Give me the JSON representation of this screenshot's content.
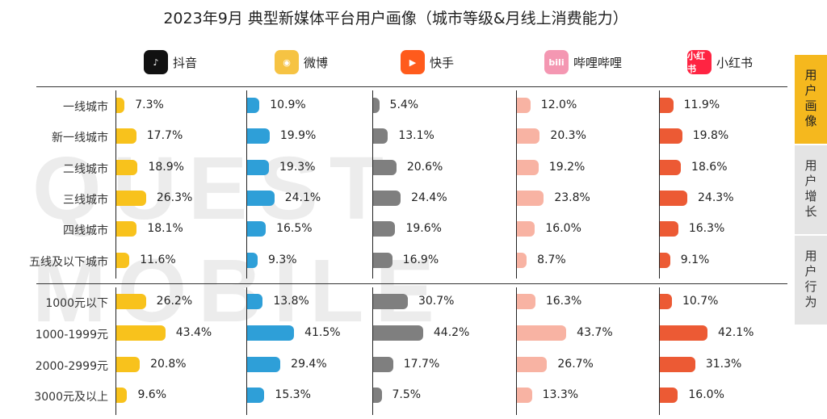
{
  "title": "2023年9月 典型新媒体平台用户画像（城市等级&月线上消费能力）",
  "watermark": "QUEST MOBILE",
  "side_tabs": [
    "用户画像",
    "用户增长",
    "用户行为"
  ],
  "platforms": [
    {
      "name": "抖音",
      "logo_text": "♪",
      "logo_icon": "douyin-icon",
      "logo_bg": "#111111",
      "color": "#f8c21c"
    },
    {
      "name": "微博",
      "logo_text": "◉",
      "logo_icon": "weibo-icon",
      "logo_bg": "#f6c343",
      "color": "#2e9fd8"
    },
    {
      "name": "快手",
      "logo_text": "▶",
      "logo_icon": "kuaishou-icon",
      "logo_bg": "#ff5b1c",
      "color": "#7f7f7f"
    },
    {
      "name": "哔哩哔哩",
      "logo_text": "bili",
      "logo_icon": "bilibili-icon",
      "logo_bg": "#f497b2",
      "color": "#f8b3a3"
    },
    {
      "name": "小红书",
      "logo_text": "小红书",
      "logo_icon": "xiaohongshu-icon",
      "logo_bg": "#ff2442",
      "color": "#ec5a34"
    }
  ],
  "chart_data": {
    "type": "bar",
    "title": "2023年9月 典型新媒体平台用户画像（城市等级&月线上消费能力）",
    "groups": [
      {
        "categories": [
          "一线城市",
          "新一线城市",
          "二线城市",
          "三线城市",
          "四线城市",
          "五线及以下城市"
        ],
        "series": [
          {
            "name": "抖音",
            "values": [
              7.3,
              17.7,
              18.9,
              26.3,
              18.1,
              11.6
            ]
          },
          {
            "name": "微博",
            "values": [
              10.9,
              19.9,
              19.3,
              24.1,
              16.5,
              9.3
            ]
          },
          {
            "name": "快手",
            "values": [
              5.4,
              13.1,
              20.6,
              24.4,
              19.6,
              16.9
            ]
          },
          {
            "name": "哔哩哔哩",
            "values": [
              12.0,
              20.3,
              19.2,
              23.8,
              16.0,
              8.7
            ]
          },
          {
            "name": "小红书",
            "values": [
              11.9,
              19.8,
              18.6,
              24.3,
              16.3,
              9.1
            ]
          }
        ]
      },
      {
        "categories": [
          "1000元以下",
          "1000-1999元",
          "2000-2999元",
          "3000元及以上"
        ],
        "series": [
          {
            "name": "抖音",
            "values": [
              26.2,
              43.4,
              20.8,
              9.6
            ]
          },
          {
            "name": "微博",
            "values": [
              13.8,
              41.5,
              29.4,
              15.3
            ]
          },
          {
            "name": "快手",
            "values": [
              30.7,
              44.2,
              17.7,
              7.5
            ]
          },
          {
            "name": "哔哩哔哩",
            "values": [
              16.3,
              43.7,
              26.7,
              13.3
            ]
          },
          {
            "name": "小红书",
            "values": [
              10.7,
              42.1,
              31.3,
              16.0
            ]
          }
        ]
      }
    ],
    "unit": "%"
  }
}
